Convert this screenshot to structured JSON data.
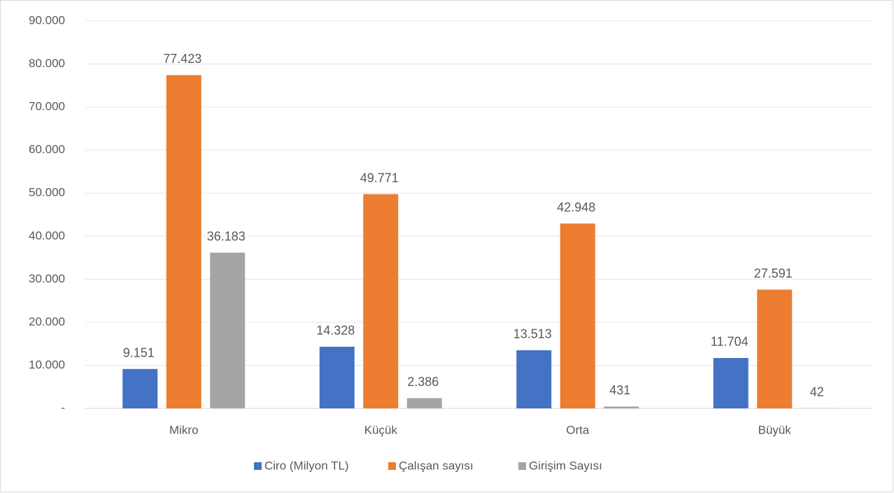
{
  "chart_data": {
    "type": "bar",
    "categories": [
      "Mikro",
      "Küçük",
      "Orta",
      "Büyük"
    ],
    "series": [
      {
        "name": "Ciro (Milyon TL)",
        "color": "#4472c4",
        "values": [
          9151,
          14328,
          13513,
          11704
        ],
        "value_labels": [
          "9.151",
          "14.328",
          "13.513",
          "11.704"
        ]
      },
      {
        "name": "Çalışan sayısı",
        "color": "#ed7d31",
        "values": [
          77423,
          49771,
          42948,
          27591
        ],
        "value_labels": [
          "77.423",
          "49.771",
          "42.948",
          "27.591"
        ]
      },
      {
        "name": "Girişim Sayısı",
        "color": "#a5a5a5",
        "values": [
          36183,
          2386,
          431,
          42
        ],
        "value_labels": [
          "36.183",
          "2.386",
          "431",
          "42"
        ]
      }
    ],
    "ylim": [
      0,
      90000
    ],
    "yticks": [
      {
        "value": 0,
        "label": "-"
      },
      {
        "value": 10000,
        "label": "10.000"
      },
      {
        "value": 20000,
        "label": "20.000"
      },
      {
        "value": 30000,
        "label": "30.000"
      },
      {
        "value": 40000,
        "label": "40.000"
      },
      {
        "value": 50000,
        "label": "50.000"
      },
      {
        "value": 60000,
        "label": "60.000"
      },
      {
        "value": 70000,
        "label": "70.000"
      },
      {
        "value": 80000,
        "label": "80.000"
      },
      {
        "value": 90000,
        "label": "90.000"
      }
    ],
    "grid": true,
    "legend": "bottom"
  }
}
